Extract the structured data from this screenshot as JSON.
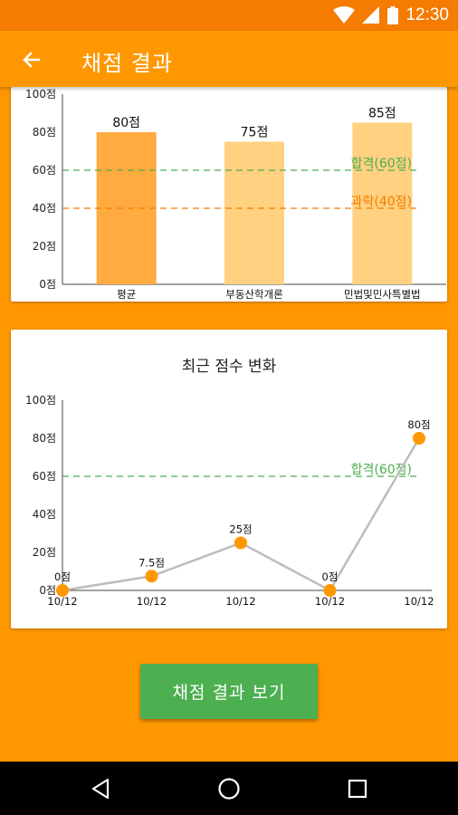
{
  "status_bar": {
    "time": "12:30"
  },
  "app_bar": {
    "title": "채점 결과"
  },
  "colors": {
    "accent": "#ff9800",
    "status_bar": "#f57c00",
    "pass": "#4caf50",
    "fail": "#f57c00"
  },
  "chart_data": [
    {
      "type": "bar",
      "title": "",
      "categories": [
        "평균",
        "부동산학개론",
        "민법및민사특별법"
      ],
      "values": [
        80,
        75,
        85
      ],
      "value_labels": [
        "80점",
        "75점",
        "85점"
      ],
      "bar_colors": [
        "#ffab40",
        "#ffd180",
        "#ffd180"
      ],
      "ylim": [
        0,
        100
      ],
      "y_ticks": [
        0,
        20,
        40,
        60,
        80,
        100
      ],
      "y_tick_labels": [
        "0점",
        "20점",
        "40점",
        "60점",
        "80점",
        "100점"
      ],
      "reference_lines": [
        {
          "label": "합격(60점)",
          "value": 60,
          "color": "#4caf50"
        },
        {
          "label": "과락(40점)",
          "value": 40,
          "color": "#f57c00"
        }
      ]
    },
    {
      "type": "line",
      "title": "최근 점수 변화",
      "x": [
        "10/12",
        "10/12",
        "10/12",
        "10/12",
        "10/12"
      ],
      "values": [
        0,
        7.5,
        25,
        0,
        80
      ],
      "value_labels": [
        "0점",
        "7.5점",
        "25점",
        "0점",
        "80점"
      ],
      "line_color": "#bdbdbd",
      "point_color": "#ff9800",
      "ylim": [
        0,
        100
      ],
      "y_ticks": [
        0,
        20,
        40,
        60,
        80,
        100
      ],
      "y_tick_labels": [
        "0점",
        "20점",
        "40점",
        "60점",
        "80점",
        "100점"
      ],
      "reference_lines": [
        {
          "label": "합격(60점)",
          "value": 60,
          "color": "#4caf50"
        }
      ]
    }
  ],
  "actions": {
    "view_results_label": "채점 결과 보기"
  },
  "icons": {
    "back": "arrow-left-icon",
    "wifi": "wifi-icon",
    "signal": "signal-icon",
    "battery": "battery-icon",
    "nav_back": "nav-back-icon",
    "nav_home": "nav-home-icon",
    "nav_recents": "nav-recents-icon"
  }
}
